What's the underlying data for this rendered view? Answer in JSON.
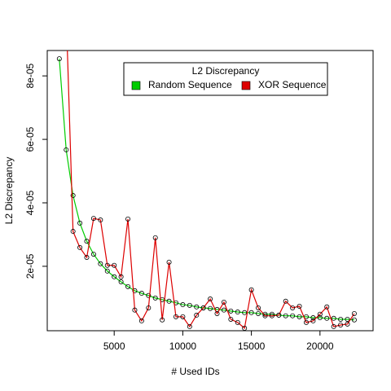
{
  "chart_data": {
    "type": "line",
    "x_label": "# Used IDs",
    "y_label": "L2 Discrepancy",
    "legend_title": "L2 Discrepancy",
    "legend": "top-right",
    "x": [
      1000,
      1500,
      2000,
      2500,
      3000,
      3500,
      4000,
      4500,
      5000,
      5500,
      6000,
      6500,
      7000,
      7500,
      8000,
      8500,
      9000,
      9500,
      10000,
      10500,
      11000,
      11500,
      12000,
      12500,
      13000,
      13500,
      14000,
      14500,
      15000,
      15500,
      16000,
      16500,
      17000,
      17500,
      18000,
      18500,
      19000,
      19500,
      20000,
      20500,
      21000,
      21500,
      22000,
      22500
    ],
    "series": [
      {
        "name": "Random Sequence",
        "color": "#00cc00",
        "values": [
          8.54e-05,
          5.67e-05,
          4.23e-05,
          3.36e-05,
          2.79e-05,
          2.38e-05,
          2.08e-05,
          1.85e-05,
          1.67e-05,
          1.51e-05,
          1.36e-05,
          1.23e-05,
          1.15e-05,
          1.08e-05,
          1e-05,
          9.5e-06,
          9e-06,
          8.5e-06,
          7.9e-06,
          7.7e-06,
          7.2e-06,
          6.9e-06,
          6.7e-06,
          6.4e-06,
          6.2e-06,
          5.9e-06,
          5.6e-06,
          5.4e-06,
          5.4e-06,
          5.1e-06,
          4.9e-06,
          4.9e-06,
          4.6e-06,
          4.4e-06,
          4.4e-06,
          4.1e-06,
          4.1e-06,
          3.8e-06,
          3.8e-06,
          3.6e-06,
          3.6e-06,
          3.3e-06,
          3.3e-06,
          3.1e-06
        ]
      },
      {
        "name": "XOR Sequence",
        "color": "#dd0000",
        "values": [
          null,
          0.0001,
          3.1e-05,
          2.59e-05,
          2.28e-05,
          3.51e-05,
          3.46e-05,
          2.03e-05,
          2.03e-05,
          1.67e-05,
          3.49e-05,
          6.2e-06,
          2.8e-06,
          6.9e-06,
          2.9e-05,
          3.1e-06,
          2.13e-05,
          4.1e-06,
          4.1e-06,
          1e-06,
          4.6e-06,
          6.9e-06,
          9.7e-06,
          5.1e-06,
          8.7e-06,
          3.3e-06,
          2.3e-06,
          5e-07,
          1.26e-05,
          6.9e-06,
          4.4e-06,
          4.4e-06,
          4.6e-06,
          9e-06,
          6.9e-06,
          7.4e-06,
          2.3e-06,
          2.8e-06,
          4.9e-06,
          7.2e-06,
          1e-06,
          1.5e-06,
          1.8e-06,
          5.1e-06
        ]
      }
    ],
    "xlim": [
      120,
      23870
    ],
    "xticks": [
      5000,
      10000,
      15000,
      20000
    ],
    "ylim": [
      -3e-07,
      8.8e-05
    ],
    "yticks": [
      {
        "value": 2e-05,
        "label": "2e-05"
      },
      {
        "value": 4e-05,
        "label": "4e-05"
      },
      {
        "value": 6e-05,
        "label": "6e-05"
      },
      {
        "value": 8e-05,
        "label": "8e-05"
      }
    ]
  }
}
